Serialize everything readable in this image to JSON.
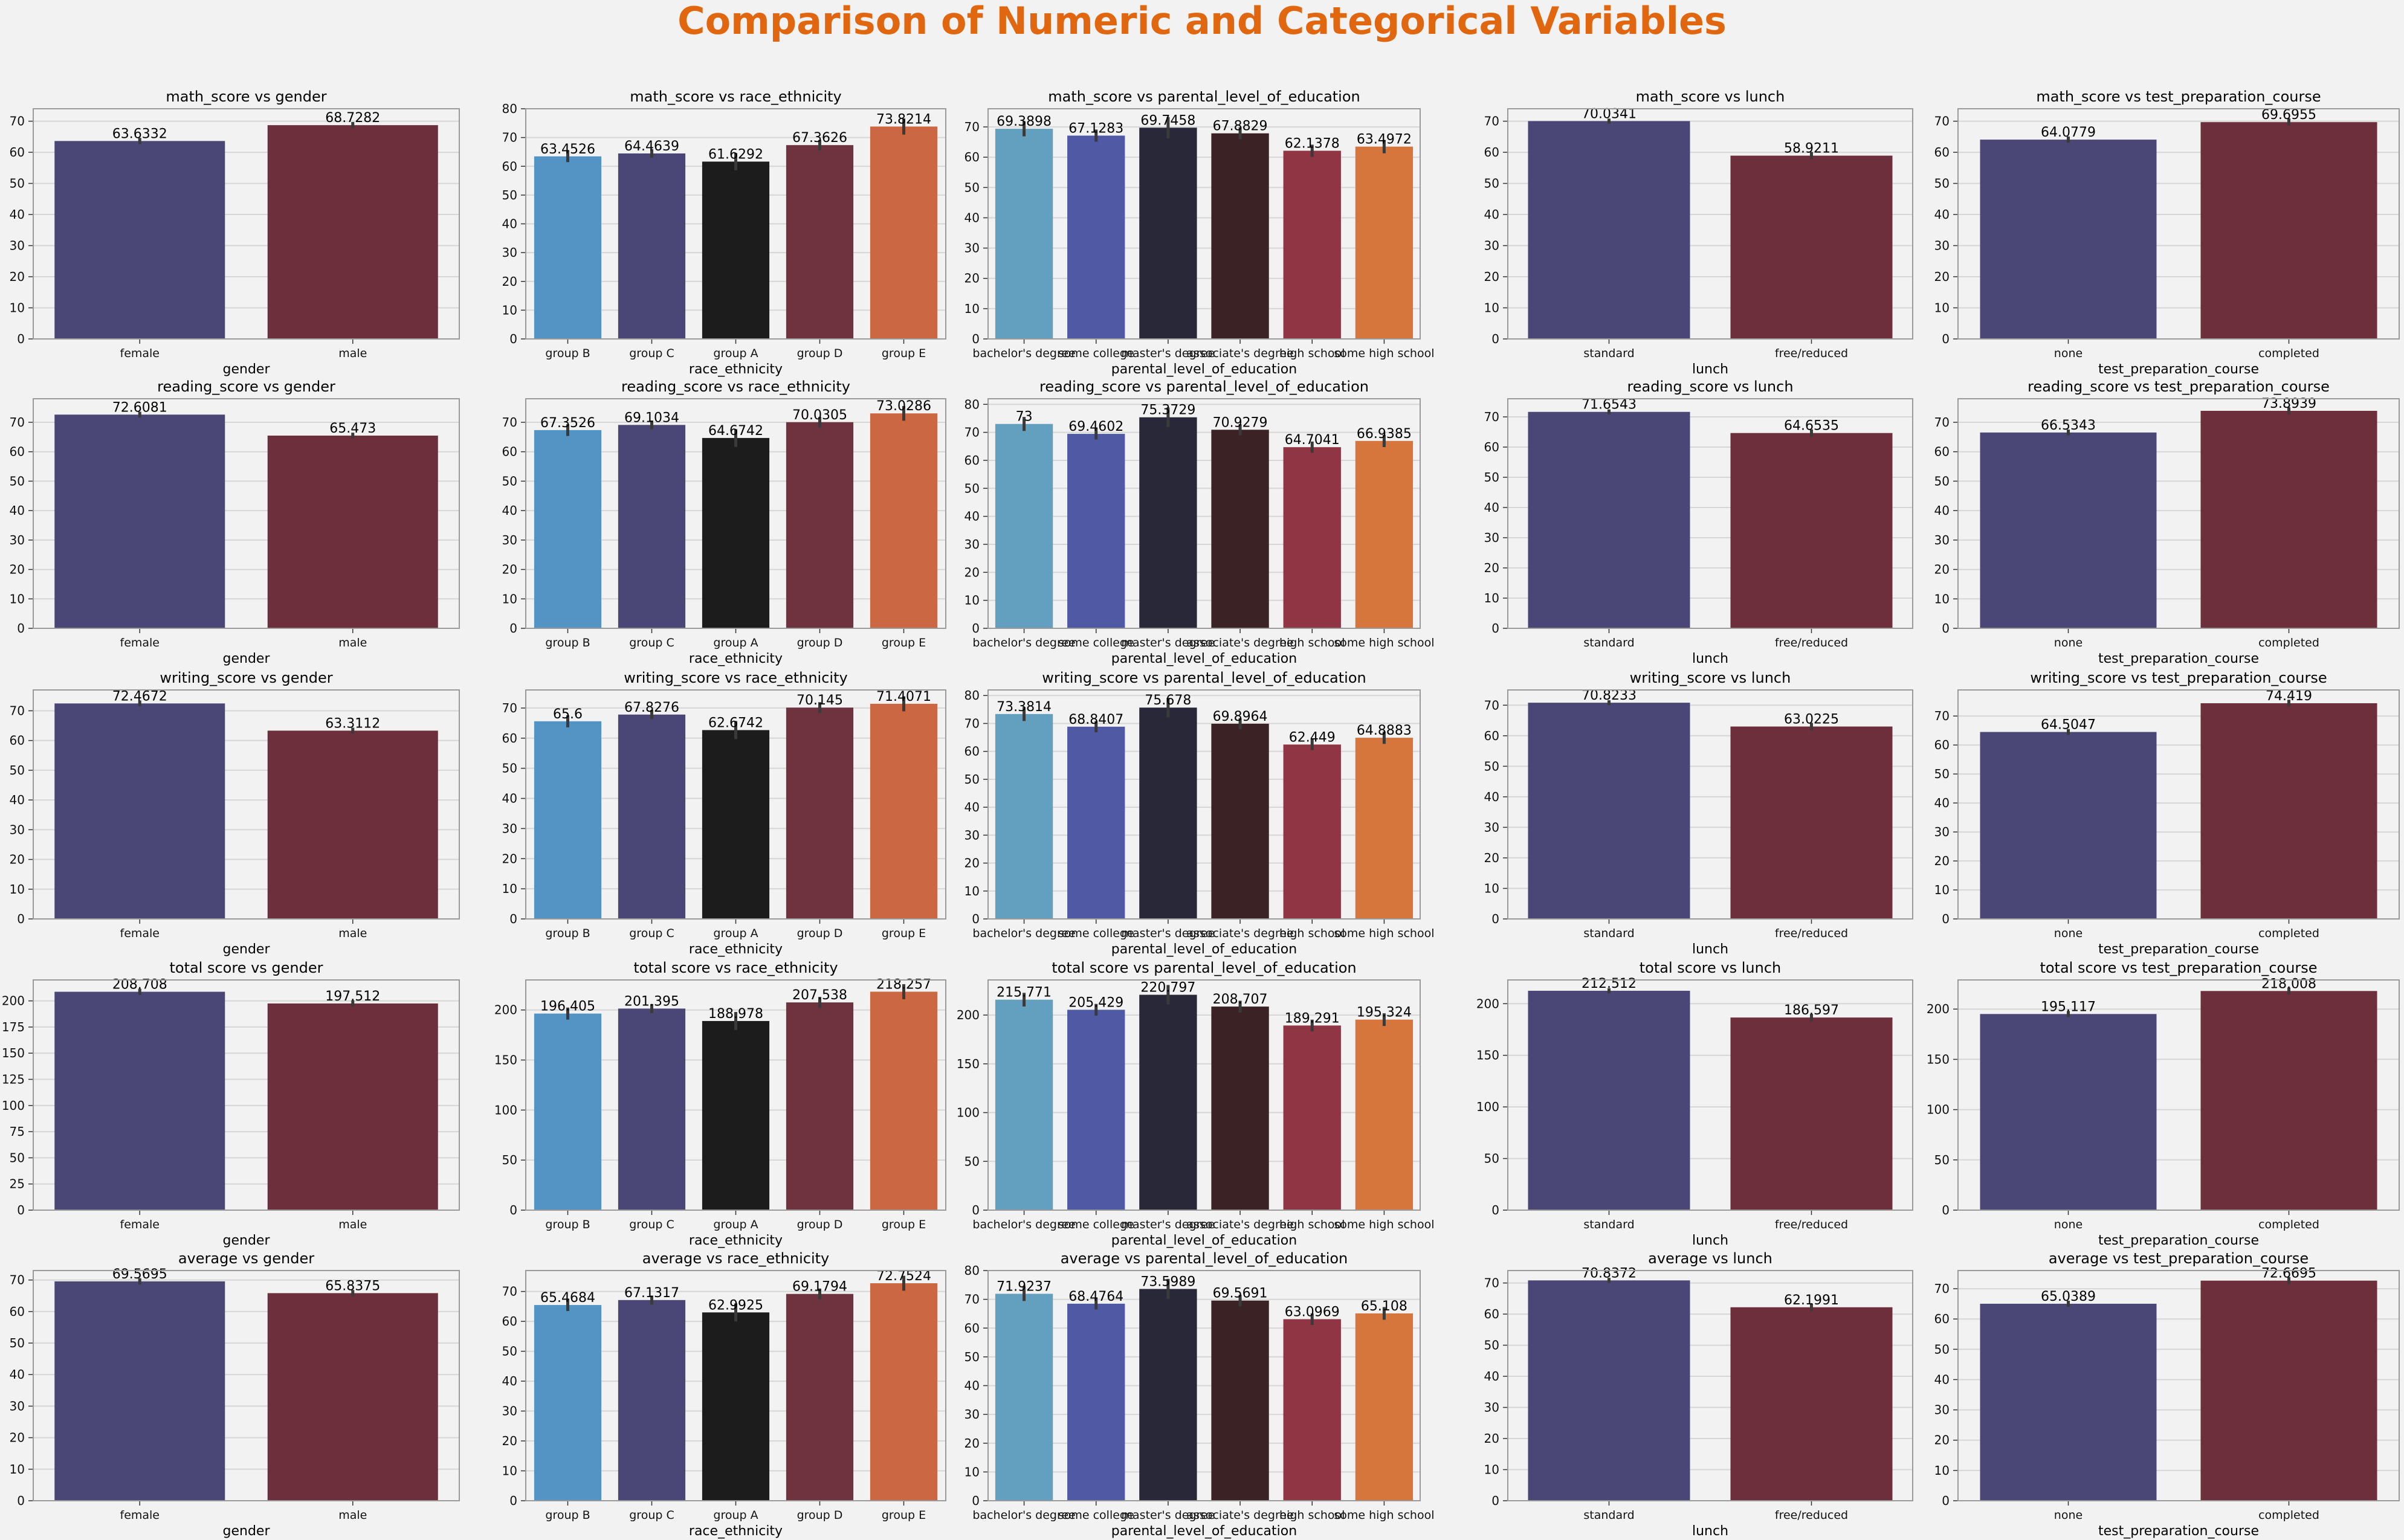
{
  "figure": {
    "suptitle": "Comparison of Numeric and Categorical Variables",
    "suptitle_color": "#e0670f",
    "background": "#f2f2f2",
    "axes_background": "#f2f2f2",
    "grid_color": "#d6d6d6",
    "spine_color": "#9a9a9a"
  },
  "palettes": {
    "two": [
      "#4a4777",
      "#6e2f3c"
    ],
    "race": [
      "#5494c4",
      "#4a4777",
      "#1c1c1c",
      "#6e333f",
      "#cb6843"
    ],
    "edu": [
      "#63a0c0",
      "#5059a3",
      "#282838",
      "#3b2224",
      "#8f3543",
      "#d6763d"
    ]
  },
  "chart_data": [
    {
      "type": "bar",
      "title": "math_score vs gender",
      "xlabel": "gender",
      "ylabel": "",
      "palette": "two",
      "categories": [
        "female",
        "male"
      ],
      "values": [
        63.6332,
        68.7282
      ],
      "labels": [
        "63.6332",
        "68.7282"
      ],
      "err": [
        1.0,
        1.0
      ],
      "ylim": [
        0,
        74
      ],
      "yticks": [
        0,
        10,
        20,
        30,
        40,
        50,
        60,
        70
      ],
      "grid": true
    },
    {
      "type": "bar",
      "title": "math_score vs race_ethnicity",
      "xlabel": "race_ethnicity",
      "ylabel": "",
      "palette": "race",
      "categories": [
        "group B",
        "group C",
        "group A",
        "group D",
        "group E"
      ],
      "values": [
        63.4526,
        64.4639,
        61.6292,
        67.3626,
        73.8214
      ],
      "labels": [
        "63.4526",
        "64.4639",
        "61.6292",
        "67.3626",
        "73.8214"
      ],
      "err": [
        2.0,
        1.5,
        3.0,
        1.8,
        2.8
      ],
      "ylim": [
        0,
        80
      ],
      "yticks": [
        0,
        10,
        20,
        30,
        40,
        50,
        60,
        70,
        80
      ],
      "grid": true
    },
    {
      "type": "bar",
      "title": "math_score vs parental_level_of_education",
      "xlabel": "parental_level_of_education",
      "ylabel": "",
      "palette": "edu",
      "categories": [
        "bachelor's degree",
        "some college",
        "master's degree",
        "associate's degree",
        "high school",
        "some high school"
      ],
      "values": [
        69.3898,
        67.1283,
        69.7458,
        67.8829,
        62.1378,
        63.4972
      ],
      "labels": [
        "69.3898",
        "67.1283",
        "69.7458",
        "67.8829",
        "62.1378",
        "63.4972"
      ],
      "err": [
        2.5,
        2.0,
        3.5,
        2.0,
        2.0,
        2.2
      ],
      "ylim": [
        0,
        76
      ],
      "yticks": [
        0,
        10,
        20,
        30,
        40,
        50,
        60,
        70
      ],
      "grid": true
    },
    {
      "type": "bar",
      "title": "math_score vs lunch",
      "xlabel": "lunch",
      "ylabel": "",
      "palette": "two",
      "categories": [
        "standard",
        "free/reduced"
      ],
      "values": [
        70.0341,
        58.9211
      ],
      "labels": [
        "70.0341",
        "58.9211"
      ],
      "err": [
        0.8,
        1.2
      ],
      "ylim": [
        0,
        74
      ],
      "yticks": [
        0,
        10,
        20,
        30,
        40,
        50,
        60,
        70
      ],
      "grid": true
    },
    {
      "type": "bar",
      "title": "math_score vs test_preparation_course",
      "xlabel": "test_preparation_course",
      "ylabel": "",
      "palette": "two",
      "categories": [
        "none",
        "completed"
      ],
      "values": [
        64.0779,
        69.6955
      ],
      "labels": [
        "64.0779",
        "69.6955"
      ],
      "err": [
        1.0,
        1.2
      ],
      "ylim": [
        0,
        74
      ],
      "yticks": [
        0,
        10,
        20,
        30,
        40,
        50,
        60,
        70
      ],
      "grid": true
    },
    {
      "type": "bar",
      "title": "reading_score vs gender",
      "xlabel": "gender",
      "ylabel": "",
      "palette": "two",
      "categories": [
        "female",
        "male"
      ],
      "values": [
        72.6081,
        65.473
      ],
      "labels": [
        "72.6081",
        "65.473"
      ],
      "err": [
        1.0,
        1.0
      ],
      "ylim": [
        0,
        78
      ],
      "yticks": [
        0,
        10,
        20,
        30,
        40,
        50,
        60,
        70
      ],
      "grid": true
    },
    {
      "type": "bar",
      "title": "reading_score vs race_ethnicity",
      "xlabel": "race_ethnicity",
      "ylabel": "",
      "palette": "race",
      "categories": [
        "group B",
        "group C",
        "group A",
        "group D",
        "group E"
      ],
      "values": [
        67.3526,
        69.1034,
        64.6742,
        70.0305,
        73.0286
      ],
      "labels": [
        "67.3526",
        "69.1034",
        "64.6742",
        "70.0305",
        "73.0286"
      ],
      "err": [
        2.0,
        1.5,
        3.0,
        1.8,
        2.5
      ],
      "ylim": [
        0,
        78
      ],
      "yticks": [
        0,
        10,
        20,
        30,
        40,
        50,
        60,
        70
      ],
      "grid": true
    },
    {
      "type": "bar",
      "title": "reading_score vs parental_level_of_education",
      "xlabel": "parental_level_of_education",
      "ylabel": "",
      "palette": "edu",
      "categories": [
        "bachelor's degree",
        "some college",
        "master's degree",
        "associate's degree",
        "high school",
        "some high school"
      ],
      "values": [
        73,
        69.4602,
        75.3729,
        70.9279,
        64.7041,
        66.9385
      ],
      "labels": [
        "73",
        "69.4602",
        "75.3729",
        "70.9279",
        "64.7041",
        "66.9385"
      ],
      "err": [
        2.5,
        2.0,
        3.5,
        2.0,
        2.0,
        2.2
      ],
      "ylim": [
        0,
        82
      ],
      "yticks": [
        0,
        10,
        20,
        30,
        40,
        50,
        60,
        70,
        80
      ],
      "grid": true
    },
    {
      "type": "bar",
      "title": "reading_score vs lunch",
      "xlabel": "lunch",
      "ylabel": "",
      "palette": "two",
      "categories": [
        "standard",
        "free/reduced"
      ],
      "values": [
        71.6543,
        64.6535
      ],
      "labels": [
        "71.6543",
        "64.6535"
      ],
      "err": [
        0.8,
        1.2
      ],
      "ylim": [
        0,
        76
      ],
      "yticks": [
        0,
        10,
        20,
        30,
        40,
        50,
        60,
        70
      ],
      "grid": true
    },
    {
      "type": "bar",
      "title": "reading_score vs test_preparation_course",
      "xlabel": "test_preparation_course",
      "ylabel": "",
      "palette": "two",
      "categories": [
        "none",
        "completed"
      ],
      "values": [
        66.5343,
        73.8939
      ],
      "labels": [
        "66.5343",
        "73.8939"
      ],
      "err": [
        1.0,
        1.2
      ],
      "ylim": [
        0,
        78
      ],
      "yticks": [
        0,
        10,
        20,
        30,
        40,
        50,
        60,
        70
      ],
      "grid": true
    },
    {
      "type": "bar",
      "title": "writing_score vs gender",
      "xlabel": "gender",
      "ylabel": "",
      "palette": "two",
      "categories": [
        "female",
        "male"
      ],
      "values": [
        72.4672,
        63.3112
      ],
      "labels": [
        "72.4672",
        "63.3112"
      ],
      "err": [
        1.0,
        1.0
      ],
      "ylim": [
        0,
        77
      ],
      "yticks": [
        0,
        10,
        20,
        30,
        40,
        50,
        60,
        70
      ],
      "grid": true
    },
    {
      "type": "bar",
      "title": "writing_score vs race_ethnicity",
      "xlabel": "race_ethnicity",
      "ylabel": "",
      "palette": "race",
      "categories": [
        "group B",
        "group C",
        "group A",
        "group D",
        "group E"
      ],
      "values": [
        65.6,
        67.8276,
        62.6742,
        70.145,
        71.4071
      ],
      "labels": [
        "65.6",
        "67.8276",
        "62.6742",
        "70.145",
        "71.4071"
      ],
      "err": [
        2.0,
        1.5,
        3.0,
        1.8,
        2.5
      ],
      "ylim": [
        0,
        76
      ],
      "yticks": [
        0,
        10,
        20,
        30,
        40,
        50,
        60,
        70
      ],
      "grid": true
    },
    {
      "type": "bar",
      "title": "writing_score vs parental_level_of_education",
      "xlabel": "parental_level_of_education",
      "ylabel": "",
      "palette": "edu",
      "categories": [
        "bachelor's degree",
        "some college",
        "master's degree",
        "associate's degree",
        "high school",
        "some high school"
      ],
      "values": [
        73.3814,
        68.8407,
        75.678,
        69.8964,
        62.449,
        64.8883
      ],
      "labels": [
        "73.3814",
        "68.8407",
        "75.678",
        "69.8964",
        "62.449",
        "64.8883"
      ],
      "err": [
        2.5,
        2.0,
        3.5,
        2.0,
        2.0,
        2.2
      ],
      "ylim": [
        0,
        82
      ],
      "yticks": [
        0,
        10,
        20,
        30,
        40,
        50,
        60,
        70,
        80
      ],
      "grid": true
    },
    {
      "type": "bar",
      "title": "writing_score vs lunch",
      "xlabel": "lunch",
      "ylabel": "",
      "palette": "two",
      "categories": [
        "standard",
        "free/reduced"
      ],
      "values": [
        70.8233,
        63.0225
      ],
      "labels": [
        "70.8233",
        "63.0225"
      ],
      "err": [
        0.8,
        1.2
      ],
      "ylim": [
        0,
        75
      ],
      "yticks": [
        0,
        10,
        20,
        30,
        40,
        50,
        60,
        70
      ],
      "grid": true
    },
    {
      "type": "bar",
      "title": "writing_score vs test_preparation_course",
      "xlabel": "test_preparation_course",
      "ylabel": "",
      "palette": "two",
      "categories": [
        "none",
        "completed"
      ],
      "values": [
        64.5047,
        74.419
      ],
      "labels": [
        "64.5047",
        "74.419"
      ],
      "err": [
        1.0,
        1.2
      ],
      "ylim": [
        0,
        79
      ],
      "yticks": [
        0,
        10,
        20,
        30,
        40,
        50,
        60,
        70
      ],
      "grid": true
    },
    {
      "type": "bar",
      "title": "total score vs gender",
      "xlabel": "gender",
      "ylabel": "",
      "palette": "two",
      "categories": [
        "female",
        "male"
      ],
      "values": [
        208.708,
        197.512
      ],
      "labels": [
        "208.708",
        "197.512"
      ],
      "err": [
        3.0,
        3.0
      ],
      "ylim": [
        0,
        220
      ],
      "yticks": [
        0,
        25,
        50,
        75,
        100,
        125,
        150,
        175,
        200
      ],
      "grid": true
    },
    {
      "type": "bar",
      "title": "total score vs race_ethnicity",
      "xlabel": "race_ethnicity",
      "ylabel": "",
      "palette": "race",
      "categories": [
        "group B",
        "group C",
        "group A",
        "group D",
        "group E"
      ],
      "values": [
        196.405,
        201.395,
        188.978,
        207.538,
        218.257
      ],
      "labels": [
        "196.405",
        "201.395",
        "188.978",
        "207.538",
        "218.257"
      ],
      "err": [
        6.0,
        4.5,
        9.0,
        5.5,
        7.5
      ],
      "ylim": [
        0,
        230
      ],
      "yticks": [
        0,
        50,
        100,
        150,
        200
      ],
      "grid": true
    },
    {
      "type": "bar",
      "title": "total score vs parental_level_of_education",
      "xlabel": "parental_level_of_education",
      "ylabel": "",
      "palette": "edu",
      "categories": [
        "bachelor's degree",
        "some college",
        "master's degree",
        "associate's degree",
        "high school",
        "some high school"
      ],
      "values": [
        215.771,
        205.429,
        220.797,
        208.707,
        189.291,
        195.324
      ],
      "labels": [
        "215.771",
        "205.429",
        "220.797",
        "208.707",
        "189.291",
        "195.324"
      ],
      "err": [
        7.0,
        6.0,
        10.0,
        6.0,
        6.0,
        6.5
      ],
      "ylim": [
        0,
        236
      ],
      "yticks": [
        0,
        50,
        100,
        150,
        200
      ],
      "grid": true
    },
    {
      "type": "bar",
      "title": "total score vs lunch",
      "xlabel": "lunch",
      "ylabel": "",
      "palette": "two",
      "categories": [
        "standard",
        "free/reduced"
      ],
      "values": [
        212.512,
        186.597
      ],
      "labels": [
        "212.512",
        "186.597"
      ],
      "err": [
        2.5,
        3.5
      ],
      "ylim": [
        0,
        223
      ],
      "yticks": [
        0,
        50,
        100,
        150,
        200
      ],
      "grid": true
    },
    {
      "type": "bar",
      "title": "total score vs test_preparation_course",
      "xlabel": "test_preparation_course",
      "ylabel": "",
      "palette": "two",
      "categories": [
        "none",
        "completed"
      ],
      "values": [
        195.117,
        218.008
      ],
      "labels": [
        "195.117",
        "218.008"
      ],
      "err": [
        3.0,
        3.5
      ],
      "ylim": [
        0,
        229
      ],
      "yticks": [
        0,
        50,
        100,
        150,
        200
      ],
      "grid": true
    },
    {
      "type": "bar",
      "title": "average vs gender",
      "xlabel": "gender",
      "ylabel": "",
      "palette": "two",
      "categories": [
        "female",
        "male"
      ],
      "values": [
        69.5695,
        65.8375
      ],
      "labels": [
        "69.5695",
        "65.8375"
      ],
      "err": [
        1.0,
        1.0
      ],
      "ylim": [
        0,
        73
      ],
      "yticks": [
        0,
        10,
        20,
        30,
        40,
        50,
        60,
        70
      ],
      "grid": true
    },
    {
      "type": "bar",
      "title": "average vs race_ethnicity",
      "xlabel": "race_ethnicity",
      "ylabel": "",
      "palette": "race",
      "categories": [
        "group B",
        "group C",
        "group A",
        "group D",
        "group E"
      ],
      "values": [
        65.4684,
        67.1317,
        62.9925,
        69.1794,
        72.7524
      ],
      "labels": [
        "65.4684",
        "67.1317",
        "62.9925",
        "69.1794",
        "72.7524"
      ],
      "err": [
        2.0,
        1.5,
        3.0,
        1.8,
        2.5
      ],
      "ylim": [
        0,
        77
      ],
      "yticks": [
        0,
        10,
        20,
        30,
        40,
        50,
        60,
        70
      ],
      "grid": true
    },
    {
      "type": "bar",
      "title": "average vs parental_level_of_education",
      "xlabel": "parental_level_of_education",
      "ylabel": "",
      "palette": "edu",
      "categories": [
        "bachelor's degree",
        "some college",
        "master's degree",
        "associate's degree",
        "high school",
        "some high school"
      ],
      "values": [
        71.9237,
        68.4764,
        73.5989,
        69.5691,
        63.0969,
        65.108
      ],
      "labels": [
        "71.9237",
        "68.4764",
        "73.5989",
        "69.5691",
        "63.0969",
        "65.108"
      ],
      "err": [
        2.5,
        2.0,
        3.5,
        2.0,
        2.0,
        2.2
      ],
      "ylim": [
        0,
        80
      ],
      "yticks": [
        0,
        10,
        20,
        30,
        40,
        50,
        60,
        70,
        80
      ],
      "grid": true
    },
    {
      "type": "bar",
      "title": "average vs lunch",
      "xlabel": "lunch",
      "ylabel": "",
      "palette": "two",
      "categories": [
        "standard",
        "free/reduced"
      ],
      "values": [
        70.8372,
        62.1991
      ],
      "labels": [
        "70.8372",
        "62.1991"
      ],
      "err": [
        0.8,
        1.2
      ],
      "ylim": [
        0,
        74
      ],
      "yticks": [
        0,
        10,
        20,
        30,
        40,
        50,
        60,
        70
      ],
      "grid": true
    },
    {
      "type": "bar",
      "title": "average vs test_preparation_course",
      "xlabel": "test_preparation_course",
      "ylabel": "",
      "palette": "two",
      "categories": [
        "none",
        "completed"
      ],
      "values": [
        65.0389,
        72.6695
      ],
      "labels": [
        "65.0389",
        "72.6695"
      ],
      "err": [
        1.0,
        1.2
      ],
      "ylim": [
        0,
        76
      ],
      "yticks": [
        0,
        10,
        20,
        30,
        40,
        50,
        60,
        70
      ],
      "grid": true
    }
  ]
}
